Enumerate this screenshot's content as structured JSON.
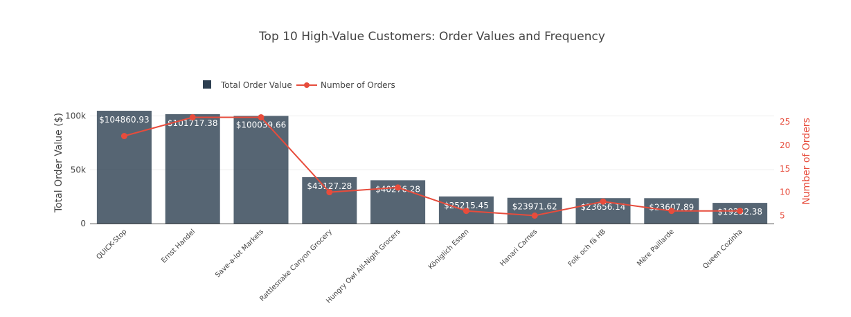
{
  "chart_data": {
    "type": "bar",
    "title": "Top 10 High-Value Customers: Order Values and Frequency",
    "categories": [
      "QUICK-Stop",
      "Ernst Handel",
      "Save-a-lot Markets",
      "Rattlesnake Canyon Grocery",
      "Hungry Owl All-Night Grocers",
      "Königlich Essen",
      "Hanari Carnes",
      "Folk och fä HB",
      "Mère Paillarde",
      "Queen Cozinha"
    ],
    "series": [
      {
        "name": "Total Order Value",
        "type": "bar",
        "axis": "left",
        "color": "#2c3e50",
        "values": [
          104860.93,
          101717.38,
          100039.66,
          43127.28,
          40276.28,
          25215.45,
          23971.62,
          23656.14,
          23607.89,
          19232.38
        ],
        "labels": [
          "$104860.93",
          "$101717.38",
          "$100039.66",
          "$43127.28",
          "$40276.28",
          "$25215.45",
          "$23971.62",
          "$23656.14",
          "$23607.89",
          "$19232.38"
        ]
      },
      {
        "name": "Number of Orders",
        "type": "line",
        "axis": "right",
        "color": "#e74c3c",
        "values": [
          22,
          26,
          26,
          10,
          11,
          6,
          5,
          8,
          6,
          6
        ]
      }
    ],
    "yaxis_left": {
      "title": "Total Order Value ($)",
      "range": [
        0,
        104860.93
      ],
      "tickvals": [
        0,
        50000,
        100000
      ],
      "ticktext": [
        "0",
        "50k",
        "100k"
      ]
    },
    "yaxis_right": {
      "title": "Number of Orders",
      "range": [
        3.3,
        27.4
      ],
      "tickvals": [
        5,
        10,
        15,
        20,
        25
      ],
      "ticktext": [
        "5",
        "10",
        "15",
        "20",
        "25"
      ],
      "color": "#e74c3c"
    },
    "bar_opacity": 0.8,
    "grid": true,
    "legend_position": "top-left, horizontal"
  }
}
